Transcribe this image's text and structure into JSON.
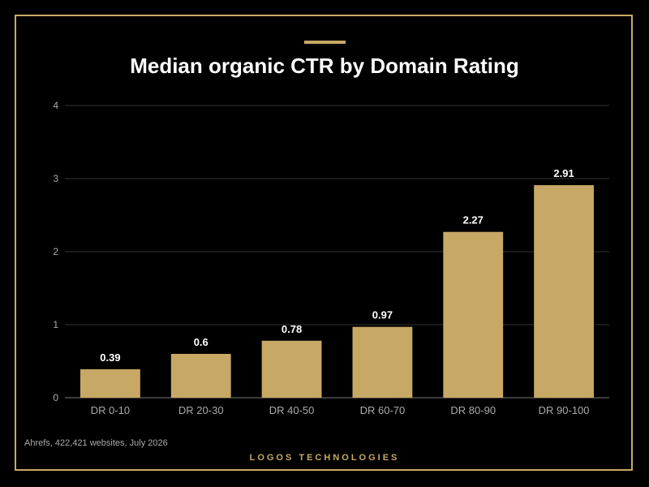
{
  "header": {
    "title": "Median organic CTR by Domain Rating"
  },
  "footer": {
    "source": "Ahrefs, 422,421 websites, July 2026",
    "brand": "LOGOS TECHNOLOGIES"
  },
  "colors": {
    "background": "#000000",
    "accent": "#c8a865",
    "bar": "#c8a865",
    "gridline": "#333333",
    "axis_text": "#aaaaaa",
    "label_text": "#ffffff"
  },
  "chart_data": {
    "type": "bar",
    "title": "Median organic CTR by Domain Rating",
    "categories": [
      "DR 0-10",
      "DR 20-30",
      "DR 40-50",
      "DR 60-70",
      "DR 80-90",
      "DR 90-100"
    ],
    "values": [
      0.39,
      0.6,
      0.78,
      0.97,
      2.27,
      2.91
    ],
    "value_labels": [
      "0.39",
      "0.6",
      "0.78",
      "0.97",
      "2.27",
      "2.91"
    ],
    "yticks": [
      0,
      1,
      2,
      3,
      4
    ],
    "ylim": [
      0,
      4
    ],
    "grid": true,
    "legend": "none"
  }
}
